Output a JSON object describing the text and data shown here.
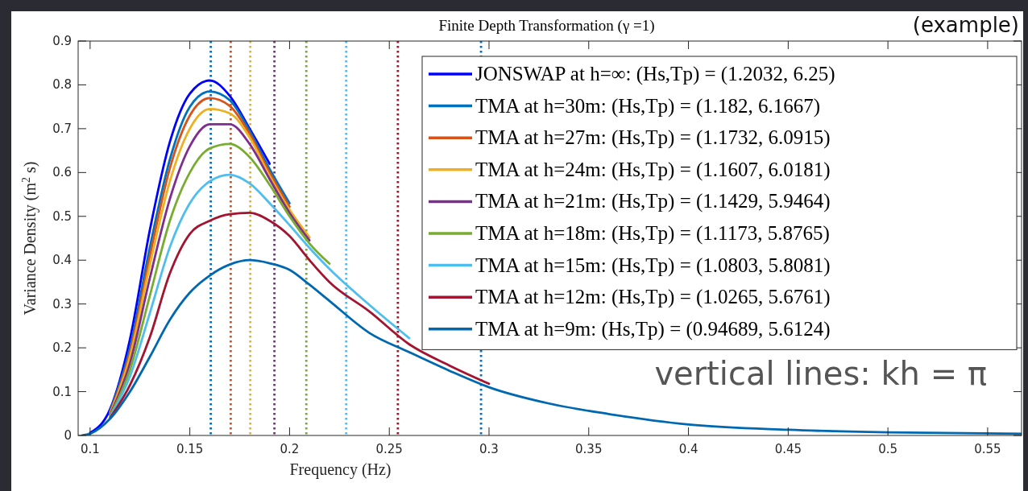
{
  "chart_data": {
    "type": "line",
    "title": "Finite Depth Transformation (γ =1)",
    "xlabel": "Frequency (Hz)",
    "ylabel": "Variance Density (m$^{2}$ s)",
    "annotations": [
      "(example)",
      "vertical lines: kh = π"
    ],
    "x": [
      0.096,
      0.1,
      0.11,
      0.12,
      0.13,
      0.14,
      0.15,
      0.16,
      0.17,
      0.18,
      0.19,
      0.2,
      0.21,
      0.22,
      0.24,
      0.26,
      0.28,
      0.3,
      0.33,
      0.36,
      0.4,
      0.45,
      0.5,
      0.567
    ],
    "series": [
      {
        "name": "JONSWAP at h=∞: (Hs,Tp) = (1.2032, 6.25)",
        "color": "#0000ff",
        "values": [
          null,
          0.006,
          0.06,
          0.22,
          0.47,
          0.67,
          0.78,
          0.81,
          0.775,
          0.7,
          0.62,
          null,
          null,
          null,
          null,
          null,
          null,
          null,
          null,
          null,
          null,
          null,
          null,
          null
        ]
      },
      {
        "name": "TMA at h=30m: (Hs,Tp) = (1.182, 6.1667)",
        "color": "#0072bd",
        "values": [
          null,
          null,
          0.055,
          0.2,
          0.43,
          0.63,
          0.75,
          0.785,
          0.765,
          0.695,
          0.608,
          0.53,
          null,
          null,
          null,
          null,
          null,
          null,
          null,
          null,
          null,
          null,
          null,
          null
        ]
      },
      {
        "name": "TMA at h=27m: (Hs,Tp) = (1.1732, 6.0915)",
        "color": "#d95319",
        "values": [
          null,
          null,
          0.052,
          0.19,
          0.41,
          0.61,
          0.73,
          0.77,
          0.752,
          0.688,
          0.6,
          0.522,
          null,
          null,
          null,
          null,
          null,
          null,
          null,
          null,
          null,
          null,
          null,
          null
        ]
      },
      {
        "name": "TMA at h=24m: (Hs,Tp) = (1.1607, 6.0181)",
        "color": "#edb120",
        "values": [
          null,
          null,
          0.05,
          0.18,
          0.39,
          0.58,
          0.7,
          0.745,
          0.735,
          0.68,
          0.592,
          0.515,
          0.452,
          null,
          null,
          null,
          null,
          null,
          null,
          null,
          null,
          null,
          null,
          null
        ]
      },
      {
        "name": "TMA at h=21m: (Hs,Tp) = (1.1429, 5.9464)",
        "color": "#7e2f8e",
        "values": [
          null,
          null,
          0.047,
          0.165,
          0.36,
          0.54,
          0.66,
          0.71,
          0.71,
          0.665,
          0.585,
          0.508,
          0.445,
          null,
          null,
          null,
          null,
          null,
          null,
          null,
          null,
          null,
          null,
          null
        ]
      },
      {
        "name": "TMA at h=18m: (Hs,Tp) = (1.1173, 5.8765)",
        "color": "#77ac30",
        "values": [
          null,
          null,
          0.045,
          0.15,
          0.32,
          0.49,
          0.6,
          0.655,
          0.665,
          0.635,
          0.572,
          0.5,
          0.438,
          0.392,
          null,
          null,
          null,
          null,
          null,
          null,
          null,
          null,
          null,
          null
        ]
      },
      {
        "name": "TMA at h=15m: (Hs,Tp) = (1.0803, 5.8081)",
        "color": "#4dbeee",
        "values": [
          null,
          null,
          0.042,
          0.135,
          0.28,
          0.43,
          0.53,
          0.58,
          0.595,
          0.575,
          0.53,
          0.48,
          0.428,
          0.38,
          0.298,
          0.222,
          null,
          null,
          null,
          null,
          null,
          null,
          null,
          null
        ]
      },
      {
        "name": "TMA at h=12m: (Hs,Tp) = (1.0265, 5.6761)",
        "color": "#a2142f",
        "values": [
          null,
          null,
          0.04,
          0.115,
          0.225,
          0.37,
          0.46,
          0.49,
          0.505,
          0.508,
          0.49,
          0.455,
          0.4,
          0.35,
          0.283,
          0.208,
          0.16,
          0.118,
          null,
          null,
          null,
          null,
          null,
          null
        ]
      },
      {
        "name": "TMA at h=9m: (Hs,Tp) = (0.94689, 5.6124)",
        "color": "#0068b0",
        "values": [
          0,
          0.004,
          0.038,
          0.1,
          0.18,
          0.264,
          0.326,
          0.365,
          0.39,
          0.4,
          0.393,
          0.378,
          0.344,
          0.307,
          0.234,
          0.19,
          0.148,
          0.11,
          0.073,
          0.049,
          0.025,
          0.013,
          0.007,
          0.004
        ]
      }
    ],
    "ref_lines": [
      {
        "axis": "x",
        "value": 0.1605,
        "color": "#0072bd",
        "line_style": "dotted"
      },
      {
        "axis": "x",
        "value": 0.1705,
        "color": "#d95319",
        "line_style": "dotted"
      },
      {
        "axis": "x",
        "value": 0.1803,
        "color": "#edb120",
        "line_style": "dotted"
      },
      {
        "axis": "x",
        "value": 0.1924,
        "color": "#7e2f8e",
        "line_style": "dotted"
      },
      {
        "axis": "x",
        "value": 0.2084,
        "color": "#77ac30",
        "line_style": "dotted"
      },
      {
        "axis": "x",
        "value": 0.2284,
        "color": "#4dbeee",
        "line_style": "dotted"
      },
      {
        "axis": "x",
        "value": 0.2543,
        "color": "#a2142f",
        "line_style": "dotted"
      },
      {
        "axis": "x",
        "value": 0.296,
        "color": "#0072bd",
        "line_style": "dotted"
      }
    ],
    "xlim": [
      0.094,
      0.567
    ],
    "ylim": [
      0,
      0.9
    ],
    "xticks": [
      0.1,
      0.15,
      0.2,
      0.25,
      0.3,
      0.35,
      0.4,
      0.45,
      0.5,
      0.55
    ],
    "yticks": [
      0,
      0.1,
      0.2,
      0.3,
      0.4,
      0.5,
      0.6,
      0.7,
      0.8,
      0.9
    ],
    "grid": false,
    "legend": "top right",
    "line_style": "solid",
    "marker": "none"
  }
}
